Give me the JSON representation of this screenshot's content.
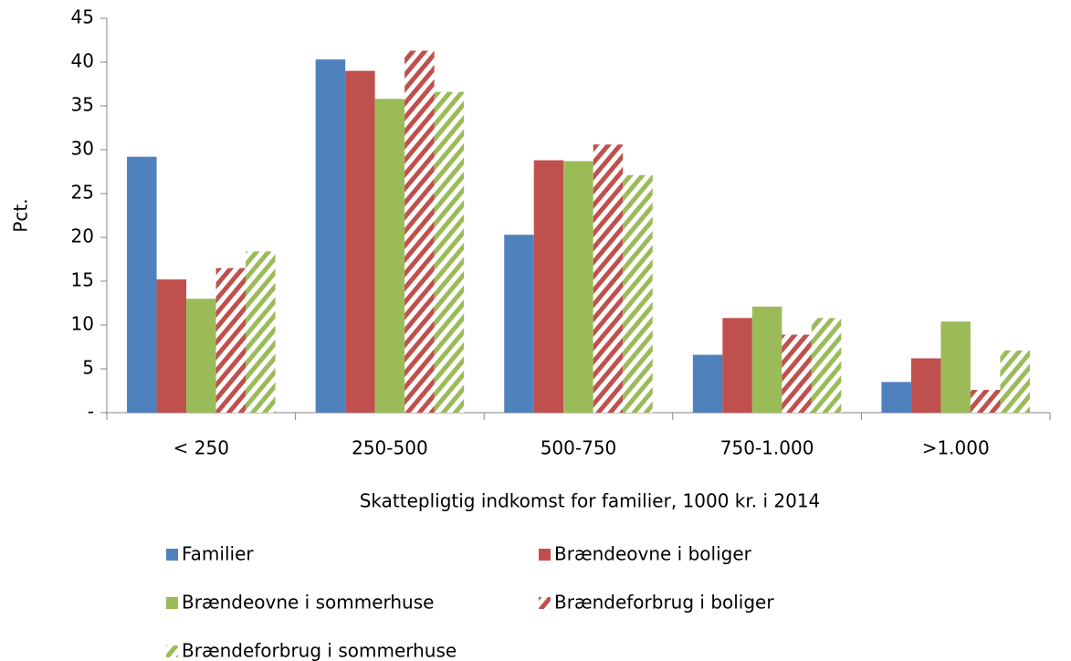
{
  "chart_data": {
    "type": "bar",
    "x_label": "Skattepligtig indkomst for familier, 1000 kr. i 2014",
    "y_label": "Pct.",
    "categories": [
      "< 250",
      "250-500",
      "500-750",
      "750-1.000",
      ">1.000"
    ],
    "series": [
      {
        "name": "Familier",
        "color": "#4f81bd",
        "hatch": false,
        "values": [
          29.2,
          40.3,
          20.3,
          6.6,
          3.5
        ]
      },
      {
        "name": "Brændeovne i boliger",
        "color": "#c0504d",
        "hatch": false,
        "values": [
          15.2,
          39.0,
          28.8,
          10.8,
          6.2
        ]
      },
      {
        "name": "Brændeovne i sommerhuse",
        "color": "#9bbb59",
        "hatch": false,
        "values": [
          13.0,
          35.8,
          28.7,
          12.1,
          10.4
        ]
      },
      {
        "name": "Brændeforbrug i boliger",
        "color": "#c0504d",
        "hatch": true,
        "values": [
          16.5,
          41.3,
          30.6,
          8.9,
          2.6
        ]
      },
      {
        "name": "Brændeforbrug i sommerhuse",
        "color": "#9bbb59",
        "hatch": true,
        "values": [
          18.4,
          36.6,
          27.1,
          10.8,
          7.1
        ]
      }
    ],
    "ylim": [
      0,
      45
    ],
    "yticks": [
      {
        "value": 0,
        "label": "-"
      },
      5,
      10,
      15,
      20,
      25,
      30,
      35,
      40,
      45
    ],
    "legend": "bottom"
  }
}
